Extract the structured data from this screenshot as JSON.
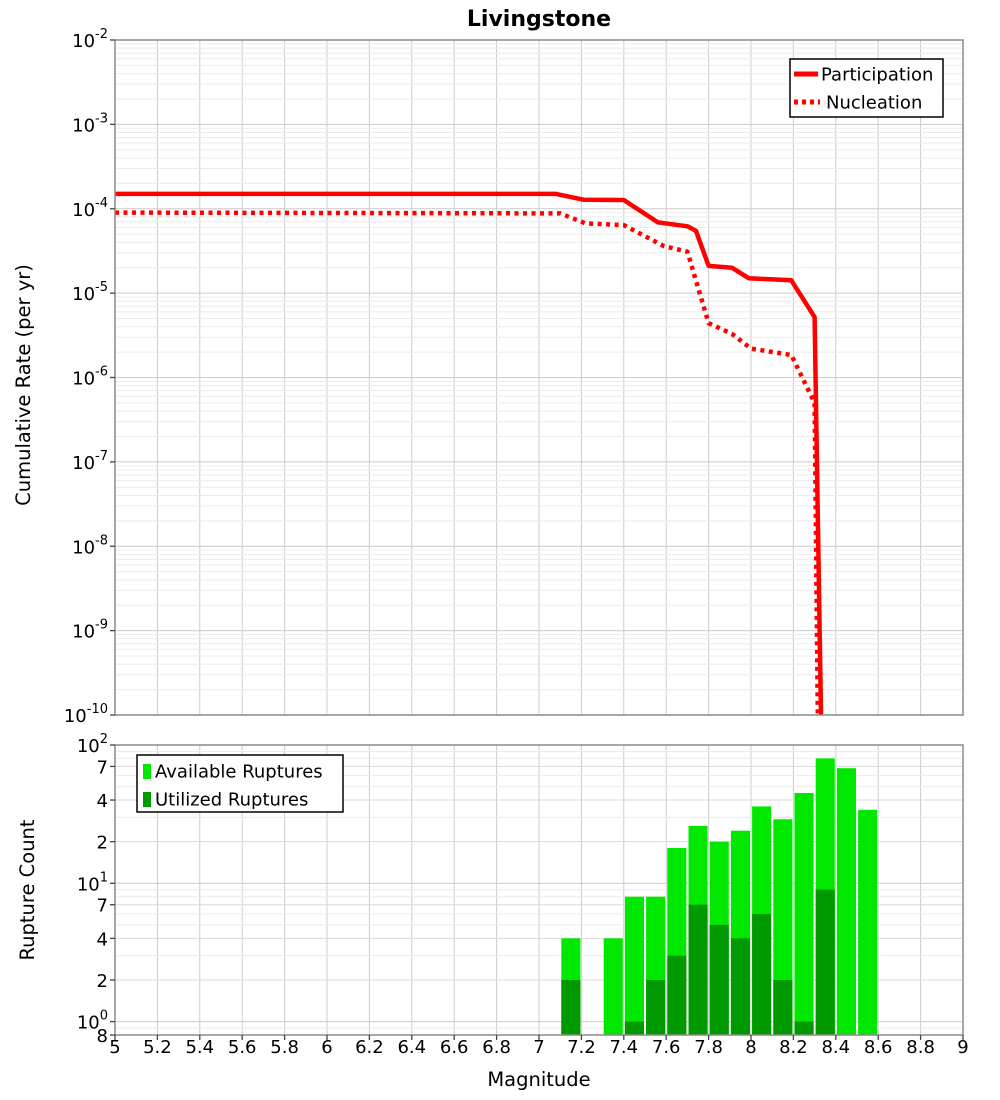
{
  "title": "Livingstone",
  "colors": {
    "participation_red": "#ff0000",
    "available_green": "#00e800",
    "utilized_green": "#009900",
    "grid_major": "#cccccc",
    "grid_minor": "#ebebeb",
    "grid_minor_labeled": "#d9d9d9",
    "panel_border": "#8a8a8a",
    "tick_mark": "#444444",
    "background": "#ffffff"
  },
  "x_axis": {
    "title": "Magnitude",
    "min": 5,
    "max": 9,
    "tick_step": 0.2,
    "tick_labels": [
      "5",
      "5.2",
      "5.4",
      "5.6",
      "5.8",
      "6",
      "6.2",
      "6.4",
      "6.6",
      "6.8",
      "7",
      "7.2",
      "7.4",
      "7.6",
      "7.8",
      "8",
      "8.2",
      "8.4",
      "8.6",
      "8.8",
      "9"
    ]
  },
  "chart_data": [
    {
      "type": "line",
      "panel": "top",
      "title": "Livingstone",
      "xlabel": "",
      "ylabel": "Cumulative Rate (per yr)",
      "x_range": [
        5,
        9
      ],
      "y_range_log": [
        1e-10,
        0.01
      ],
      "y_scale": "log",
      "grid": true,
      "legend_position": "top-right",
      "y_decade_exponents": [
        "-2",
        "-3",
        "-4",
        "-5",
        "-6",
        "-7",
        "-8",
        "-9",
        "-10"
      ],
      "series": [
        {
          "name": "Participation",
          "color": "#ff0000",
          "style": "solid",
          "points": [
            [
              5.0,
              0.00015
            ],
            [
              7.08,
              0.00015
            ],
            [
              7.21,
              0.000128
            ],
            [
              7.4,
              0.000127
            ],
            [
              7.56,
              6.9e-05
            ],
            [
              7.7,
              6.2e-05
            ],
            [
              7.74,
              5.5e-05
            ],
            [
              7.8,
              2.1e-05
            ],
            [
              7.91,
              2e-05
            ],
            [
              7.99,
              1.5e-05
            ],
            [
              8.19,
              1.42e-05
            ],
            [
              8.3,
              5.2e-06
            ],
            [
              8.33,
              1e-10
            ]
          ]
        },
        {
          "name": "Nucleation",
          "color": "#ff0000",
          "style": "dotted",
          "points": [
            [
              5.0,
              9e-05
            ],
            [
              7.1,
              8.8e-05
            ],
            [
              7.22,
              6.7e-05
            ],
            [
              7.4,
              6.4e-05
            ],
            [
              7.59,
              3.6e-05
            ],
            [
              7.7,
              3.1e-05
            ],
            [
              7.8,
              4.4e-06
            ],
            [
              7.91,
              3.3e-06
            ],
            [
              8.0,
              2.2e-06
            ],
            [
              8.19,
              1.85e-06
            ],
            [
              8.3,
              5e-07
            ],
            [
              8.315,
              1e-10
            ]
          ]
        }
      ]
    },
    {
      "type": "bar",
      "panel": "bottom",
      "xlabel": "Magnitude",
      "ylabel": "Rupture Count",
      "x_range": [
        5,
        9
      ],
      "y_range_log": [
        0.8,
        100
      ],
      "y_scale": "log",
      "grid": true,
      "legend_position": "top-left",
      "bar_bin_width": 0.1,
      "categories": [
        7.15,
        7.35,
        7.45,
        7.55,
        7.65,
        7.75,
        7.85,
        7.95,
        8.05,
        8.15,
        8.25,
        8.35,
        8.45,
        8.55
      ],
      "series": [
        {
          "name": "Available Ruptures",
          "color": "#00e800",
          "values": [
            4,
            4,
            8,
            8,
            18,
            26,
            20,
            24,
            36,
            29,
            45,
            80,
            68,
            34
          ]
        },
        {
          "name": "Utilized Ruptures",
          "color": "#009900",
          "values": [
            2,
            0,
            1,
            2,
            3,
            7,
            5,
            4,
            6,
            2,
            1,
            9,
            0,
            0
          ]
        }
      ],
      "y_ticks": [
        {
          "v": 100,
          "base": "10",
          "sup": "2"
        },
        {
          "v": 70,
          "t": "7"
        },
        {
          "v": 40,
          "t": "4"
        },
        {
          "v": 20,
          "t": "2"
        },
        {
          "v": 10,
          "base": "10",
          "sup": "1"
        },
        {
          "v": 7,
          "t": "7"
        },
        {
          "v": 4,
          "t": "4"
        },
        {
          "v": 2,
          "t": "2"
        },
        {
          "v": 1,
          "base": "10",
          "sup": "0"
        },
        {
          "v": 0.8,
          "t": "8"
        }
      ]
    }
  ]
}
